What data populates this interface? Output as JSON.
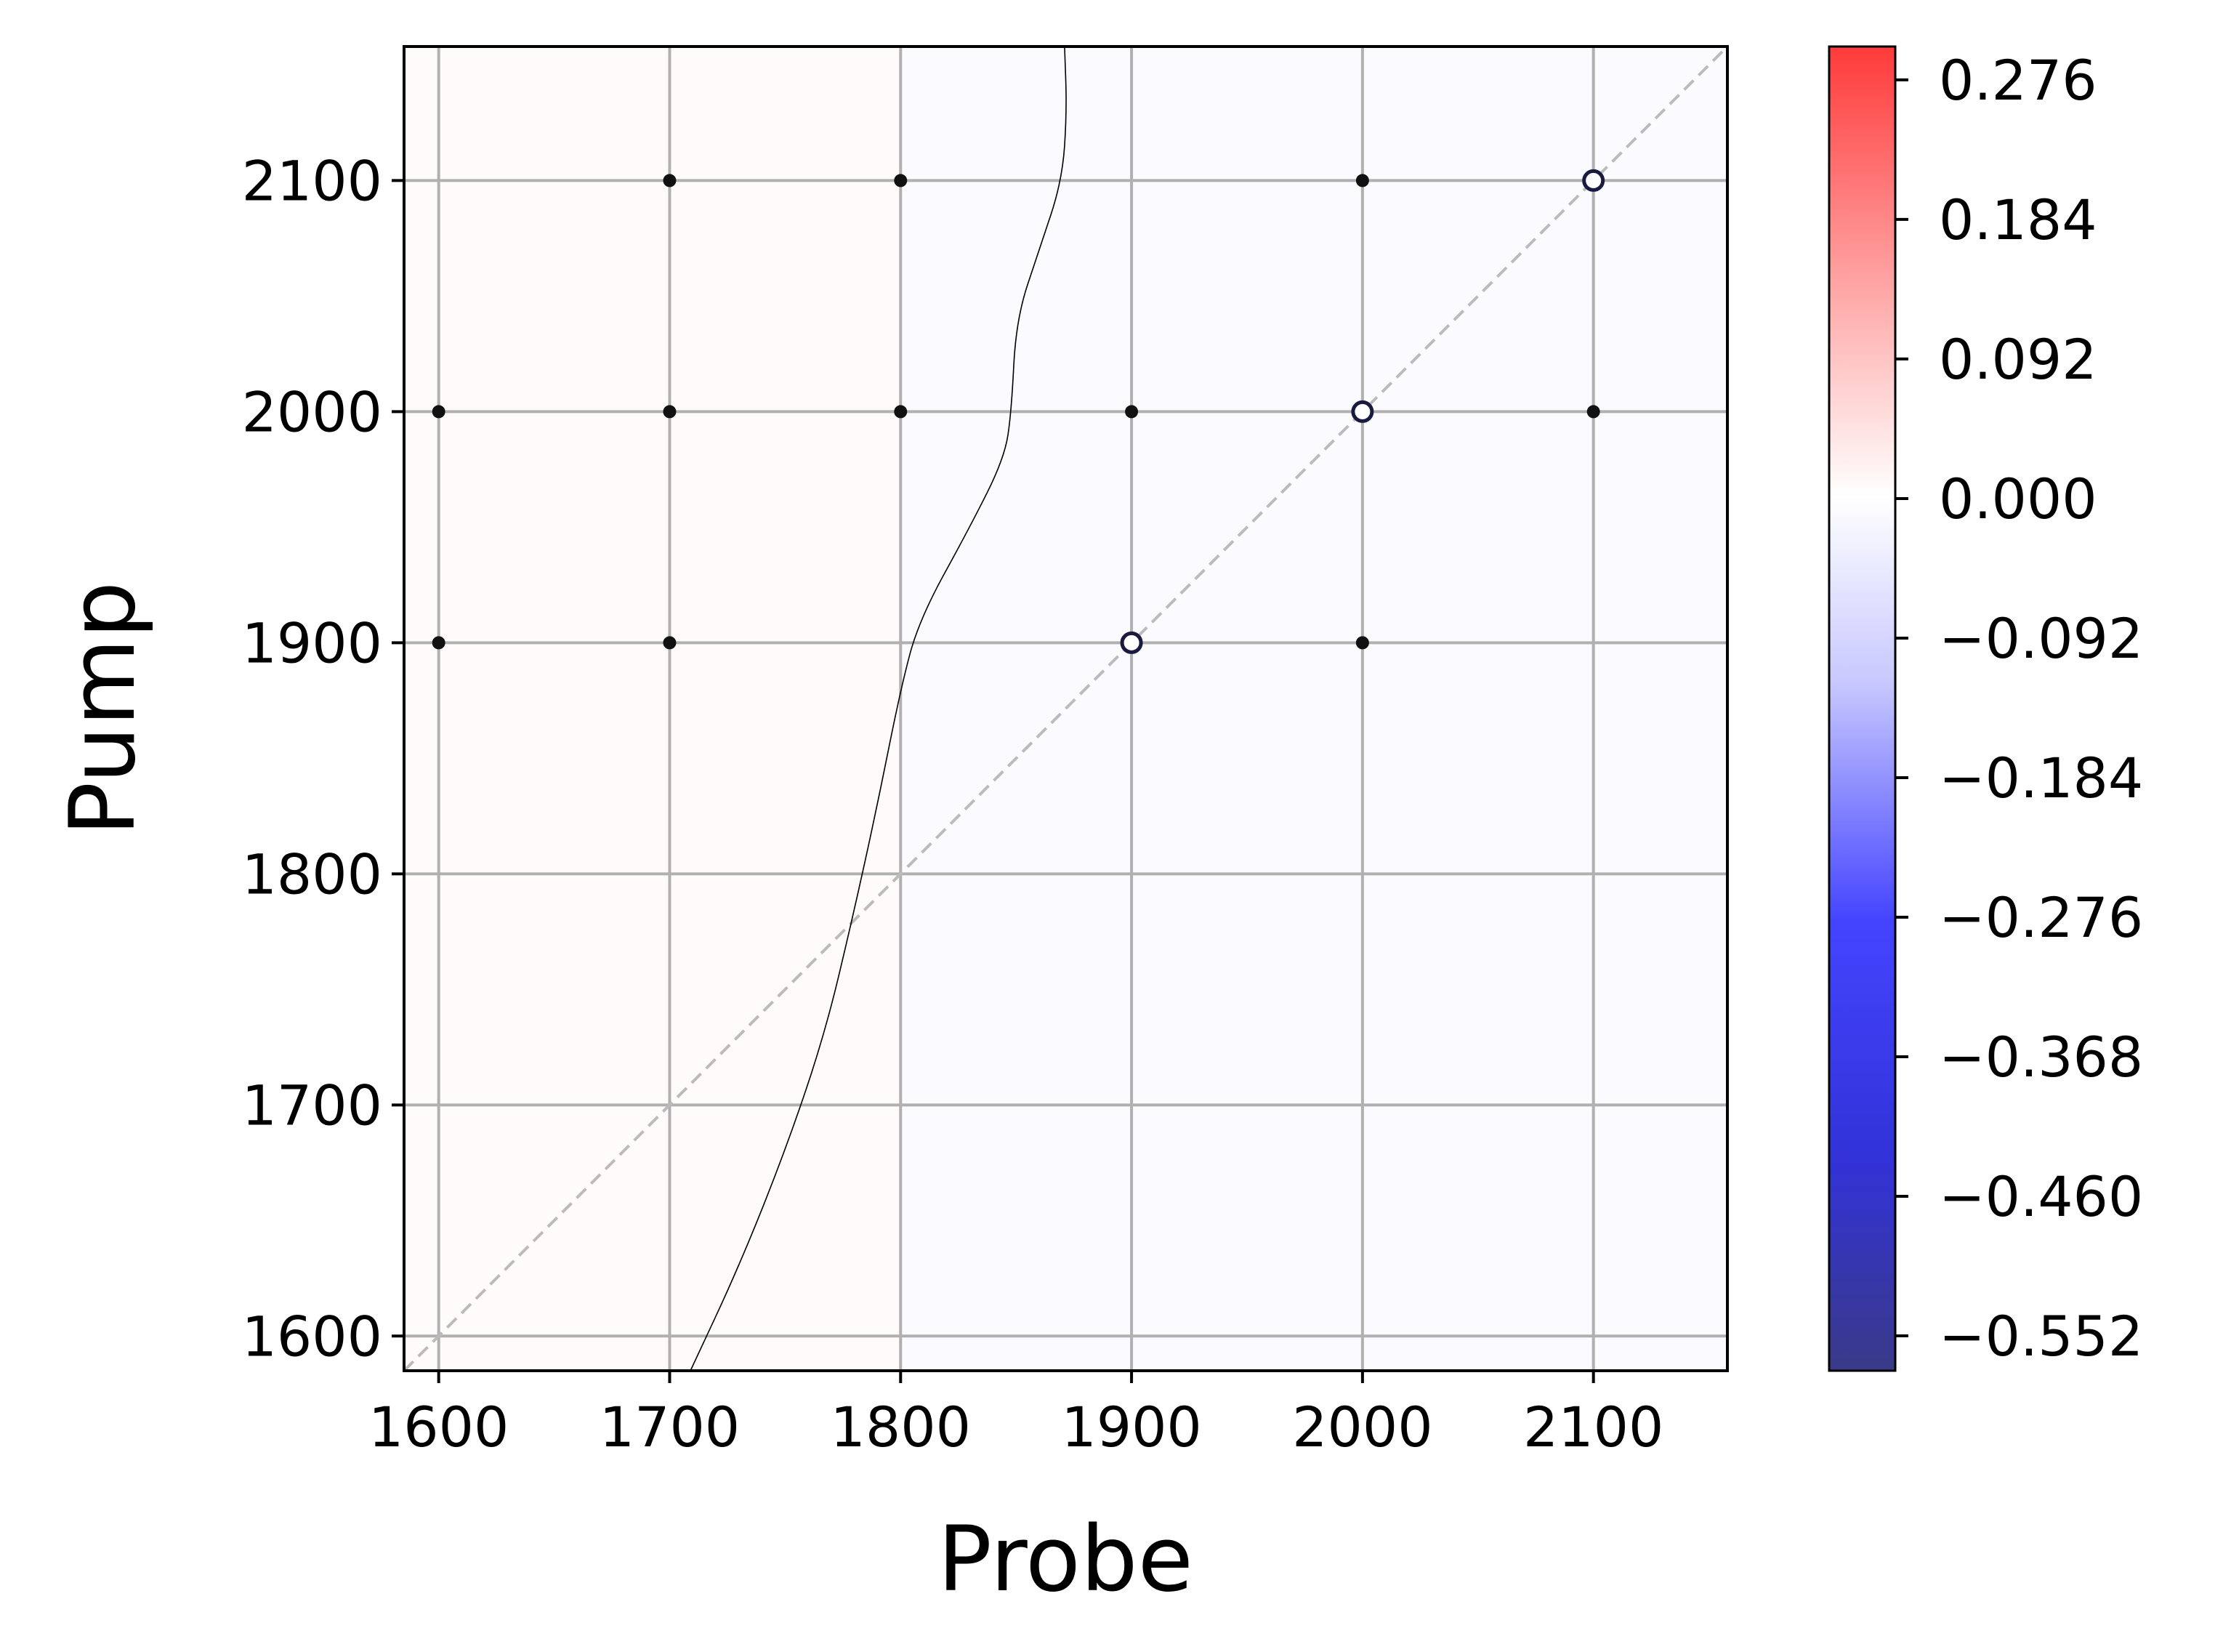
{
  "chart_data": {
    "type": "scatter",
    "xlabel": "Probe",
    "ylabel": "Pump",
    "xlim": [
      1585,
      2158
    ],
    "ylim": [
      1585,
      2158
    ],
    "x_ticks": [
      1600,
      1700,
      1800,
      1900,
      2000,
      2100
    ],
    "y_ticks": [
      1600,
      1700,
      1800,
      1900,
      2000,
      2100
    ],
    "grid": true,
    "diagonal_line": {
      "from": [
        1585,
        1585
      ],
      "to": [
        2158,
        2158
      ],
      "style": "dashed",
      "color": "#bbbbbb"
    },
    "points": [
      {
        "x": 1700,
        "y": 2100,
        "value": 0.0
      },
      {
        "x": 1800,
        "y": 2100,
        "value": 0.0
      },
      {
        "x": 2000,
        "y": 2100,
        "value": 0.0
      },
      {
        "x": 2100,
        "y": 2100,
        "value": -0.03,
        "highlight": true
      },
      {
        "x": 1600,
        "y": 2000,
        "value": 0.0
      },
      {
        "x": 1700,
        "y": 2000,
        "value": 0.0
      },
      {
        "x": 1800,
        "y": 2000,
        "value": 0.0
      },
      {
        "x": 1900,
        "y": 2000,
        "value": 0.0
      },
      {
        "x": 2000,
        "y": 2000,
        "value": -0.03,
        "highlight": true
      },
      {
        "x": 2100,
        "y": 2000,
        "value": 0.0
      },
      {
        "x": 1600,
        "y": 1900,
        "value": 0.0
      },
      {
        "x": 1700,
        "y": 1900,
        "value": 0.0
      },
      {
        "x": 1900,
        "y": 1900,
        "value": -0.03,
        "highlight": true
      },
      {
        "x": 2000,
        "y": 1900,
        "value": 0.0
      }
    ],
    "contour_curve": [
      [
        1709,
        1585
      ],
      [
        1730,
        1630
      ],
      [
        1750,
        1680
      ],
      [
        1767,
        1730
      ],
      [
        1779,
        1780
      ],
      [
        1790,
        1830
      ],
      [
        1800,
        1880
      ],
      [
        1808,
        1910
      ],
      [
        1830,
        1950
      ],
      [
        1845,
        1980
      ],
      [
        1848,
        2000
      ],
      [
        1850,
        2040
      ],
      [
        1860,
        2070
      ],
      [
        1870,
        2100
      ],
      [
        1872,
        2130
      ],
      [
        1871,
        2158
      ]
    ],
    "colorbar": {
      "cmap": "seismic",
      "vmin": -0.575,
      "vmax": 0.298,
      "ticks": [
        "0.276",
        "0.184",
        "0.092",
        "0.000",
        "−0.092",
        "−0.184",
        "−0.276",
        "−0.368",
        "−0.460",
        "−0.552"
      ],
      "tick_values": [
        0.276,
        0.184,
        0.092,
        0.0,
        -0.092,
        -0.184,
        -0.276,
        -0.368,
        -0.46,
        -0.552
      ]
    },
    "background_fill": {
      "left_color": "#fffbfb",
      "right_color": "#fbfbff"
    }
  }
}
